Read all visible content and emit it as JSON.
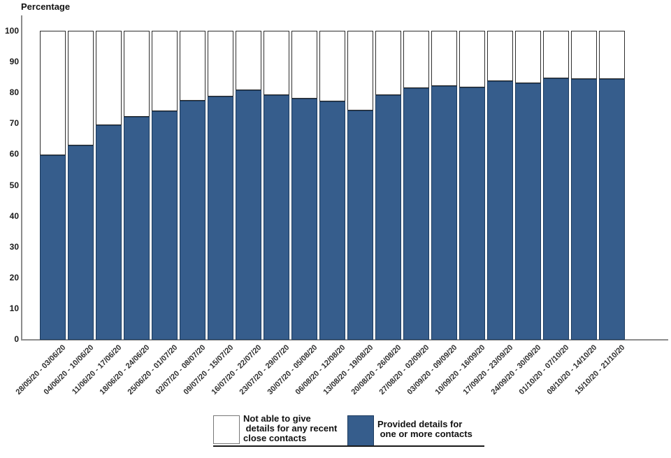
{
  "colors": {
    "provided_fill": "#365d8c",
    "provided_border": "#1b3a5e",
    "not_able_fill": "#ffffff",
    "not_able_border": "#2e2e2e",
    "axis": "#8c8c8c"
  },
  "legend": {
    "not_able": {
      "lines": [
        "Not able to give",
        " details for any recent",
        "close contacts"
      ]
    },
    "provided": {
      "lines": [
        "Provided details for",
        " one or more contacts"
      ]
    }
  },
  "chart_data": {
    "type": "bar",
    "stacked": true,
    "title": "",
    "xlabel": "",
    "ylabel": "Percentage",
    "ylim": [
      0,
      100
    ],
    "yticks": [
      0,
      10,
      20,
      30,
      40,
      50,
      60,
      70,
      80,
      90,
      100
    ],
    "grid": false,
    "legend_position": "bottom",
    "categories": [
      "28/05/20 - 03/06/20",
      "04/06/20 - 10/06/20",
      "11/06/20 - 17/06/20",
      "18/06/20 - 24/06/20",
      "25/06/20 - 01/07/20",
      "02/07/20 - 08/07/20",
      "09/07/20 - 15/07/20",
      "16/07/20 - 22/07/20",
      "23/07/20 - 29/07/20",
      "30/07/20 - 05/08/20",
      "06/08/20 - 12/08/20",
      "13/08/20 - 19/08/20",
      "20/08/20 - 26/08/20",
      "27/08/20 - 02/09/20",
      "03/09/20 - 09/09/20",
      "10/09/20 - 16/09/20",
      "17/09/20 - 23/09/20",
      "24/09/20 - 30/09/20",
      "01/10/20 - 07/10/20",
      "08/10/20 - 14/10/20",
      "15/10/20 - 21/10/20"
    ],
    "series": [
      {
        "name": "Provided details for one or more contacts",
        "color": "#365d8c",
        "values": [
          59.6,
          62.9,
          69.4,
          72.1,
          73.9,
          77.4,
          78.6,
          80.7,
          79.1,
          77.9,
          77.1,
          74.2,
          79.1,
          81.4,
          82.0,
          81.7,
          83.7,
          82.9,
          84.5,
          84.3,
          84.4
        ]
      },
      {
        "name": "Not able to give details for any recent close contacts",
        "color": "#ffffff",
        "values": [
          40.4,
          37.1,
          30.6,
          27.9,
          26.1,
          22.6,
          21.4,
          19.3,
          20.9,
          22.1,
          22.9,
          25.8,
          20.9,
          18.6,
          18.0,
          18.3,
          16.3,
          17.1,
          15.5,
          15.7,
          15.6
        ]
      }
    ]
  }
}
